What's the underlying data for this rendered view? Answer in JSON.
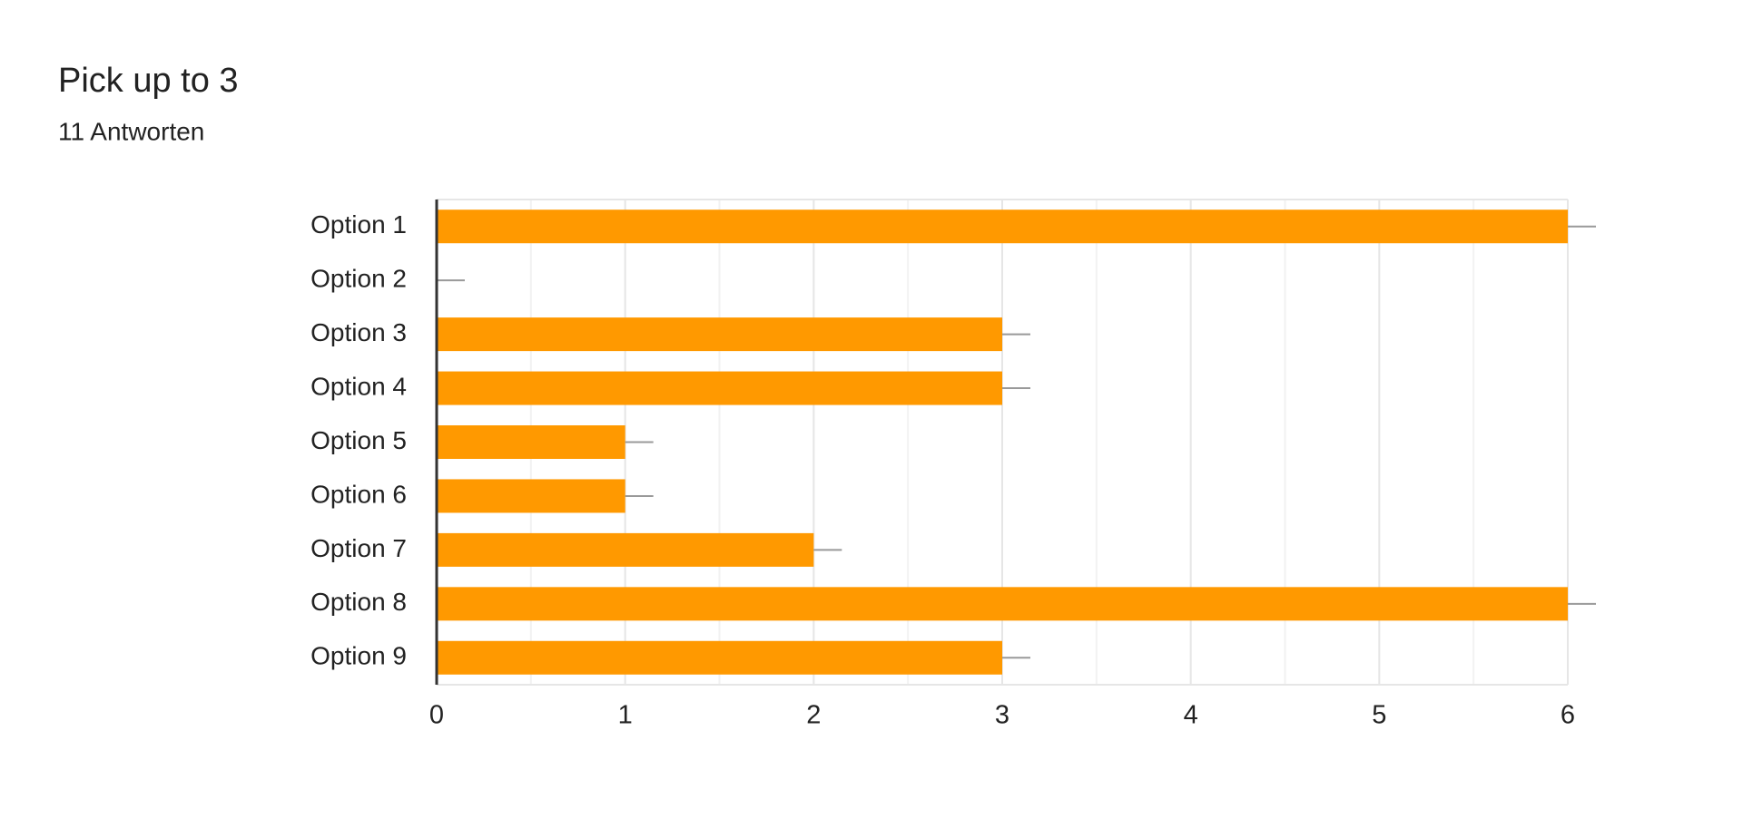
{
  "chart_data": {
    "type": "bar",
    "orientation": "horizontal",
    "title": "Pick up to 3",
    "subtitle": "11 Antworten",
    "categories": [
      "Option 1",
      "Option 2",
      "Option 3",
      "Option 4",
      "Option 5",
      "Option 6",
      "Option 7",
      "Option 8",
      "Option 9"
    ],
    "values": [
      6,
      0,
      3,
      3,
      1,
      1,
      2,
      6,
      3
    ],
    "color": "#ff9900",
    "xlim": [
      0,
      6
    ],
    "xticks": [
      0,
      1,
      2,
      3,
      4,
      5,
      6
    ],
    "grid": true
  }
}
